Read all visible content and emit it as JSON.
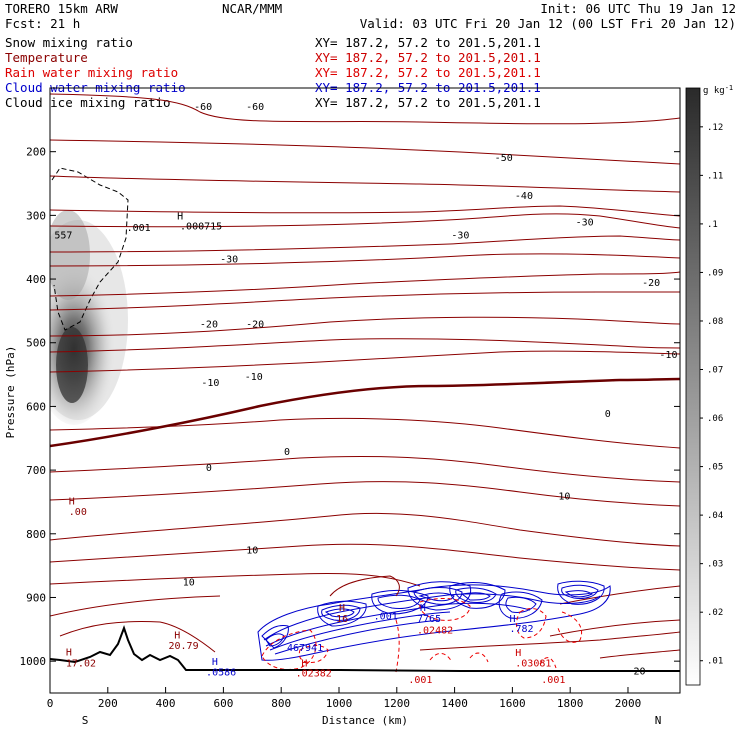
{
  "header": {
    "model": "TORERO  15km ARW",
    "center": "NCAR/MMM",
    "init": "Init: 06 UTC Thu 19 Jan 12",
    "fcst": "Fcst:   21 h",
    "valid": "Valid: 03 UTC Fri 20 Jan 12 (00 LST Fri 20 Jan 12)"
  },
  "legend": [
    {
      "name": "Snow mixing ratio",
      "xy": "XY= 187.2, 57.2 to 201.5,201.1",
      "color": "#000000"
    },
    {
      "name": "Temperature",
      "xy": "XY= 187.2, 57.2 to 201.5,201.1",
      "color": "#8b0000"
    },
    {
      "name": "Rain water mixing ratio",
      "xy": "XY= 187.2, 57.2 to 201.5,201.1",
      "color": "#ff0000"
    },
    {
      "name": "Cloud water mixing ratio",
      "xy": "XY= 187.2, 57.2 to 201.5,201.1",
      "color": "#0000cc"
    },
    {
      "name": "Cloud ice mixing ratio",
      "xy": "XY= 187.2, 57.2 to 201.5,201.1",
      "color": "#000000"
    }
  ],
  "chart_data": {
    "type": "contour-cross-section",
    "xlabel": "Distance (km)",
    "ylabel": "Pressure (hPa)",
    "xlim": [
      0,
      2180
    ],
    "ylim": [
      1050,
      100
    ],
    "x_ticks": [
      "0",
      "200",
      "400",
      "600",
      "800",
      "1000",
      "1200",
      "1400",
      "1600",
      "1800",
      "2000"
    ],
    "y_ticks": [
      "200",
      "300",
      "400",
      "500",
      "600",
      "700",
      "800",
      "900",
      "1000"
    ],
    "end_labels": {
      "left": "S",
      "right": "N"
    },
    "colorbar": {
      "unit": "g kg",
      "unit_exp": "-1",
      "ticks": [
        ".12",
        ".11",
        ".1",
        ".09",
        ".08",
        ".07",
        ".06",
        ".05",
        ".04",
        ".03",
        ".02",
        ".01"
      ]
    },
    "temperature_contour_labels": [
      {
        "text": "-60",
        "x": 530,
        "p": 128
      },
      {
        "text": "-60",
        "x": 710,
        "p": 128
      },
      {
        "text": "-50",
        "x": 1570,
        "p": 208
      },
      {
        "text": "-40",
        "x": 1640,
        "p": 268
      },
      {
        "text": "-30",
        "x": 620,
        "p": 368
      },
      {
        "text": "-30",
        "x": 1420,
        "p": 330
      },
      {
        "text": "-30",
        "x": 1850,
        "p": 310
      },
      {
        "text": "-20",
        "x": 550,
        "p": 470
      },
      {
        "text": "-20",
        "x": 710,
        "p": 470
      },
      {
        "text": "-20",
        "x": 2080,
        "p": 405
      },
      {
        "text": "-10",
        "x": 555,
        "p": 562
      },
      {
        "text": "-10",
        "x": 705,
        "p": 552
      },
      {
        "text": "-10",
        "x": 2140,
        "p": 518
      },
      {
        "text": "0",
        "x": 550,
        "p": 695
      },
      {
        "text": "0",
        "x": 820,
        "p": 670
      },
      {
        "text": "0",
        "x": 1930,
        "p": 610
      },
      {
        "text": "10",
        "x": 480,
        "p": 875
      },
      {
        "text": "10",
        "x": 700,
        "p": 825
      },
      {
        "text": "10",
        "x": 1780,
        "p": 740
      },
      {
        "text": "20",
        "x": 2040,
        "p": 1015
      }
    ],
    "other_labels": [
      {
        "text": "H",
        "x": 440,
        "p": 300,
        "color": "#000000"
      },
      {
        "text": ".000715",
        "x": 450,
        "p": 316,
        "color": "#000000"
      },
      {
        "text": ".001",
        "x": 265,
        "p": 318,
        "color": "#000000"
      },
      {
        "text": "557",
        "x": 15,
        "p": 330,
        "color": "#000000"
      },
      {
        "text": "H",
        "x": 65,
        "p": 748,
        "color": "#8b0000"
      },
      {
        "text": ".00",
        "x": 65,
        "p": 764,
        "color": "#8b0000"
      },
      {
        "text": "H",
        "x": 55,
        "p": 985,
        "color": "#8b0000"
      },
      {
        "text": "17.02",
        "x": 55,
        "p": 1002,
        "color": "#8b0000"
      },
      {
        "text": "H",
        "x": 430,
        "p": 958,
        "color": "#8b0000"
      },
      {
        "text": "20.79",
        "x": 410,
        "p": 975,
        "color": "#8b0000"
      },
      {
        "text": "H",
        "x": 560,
        "p": 1000,
        "color": "#0000cc"
      },
      {
        "text": ".0586",
        "x": 540,
        "p": 1016,
        "color": "#0000cc"
      },
      {
        "text": "H",
        "x": 870,
        "p": 1002,
        "color": "#cc0000"
      },
      {
        "text": ".02382",
        "x": 850,
        "p": 1018,
        "color": "#cc0000"
      },
      {
        "text": "467941",
        "x": 820,
        "p": 978,
        "color": "#0000cc"
      },
      {
        "text": "H",
        "x": 1000,
        "p": 915,
        "color": "#8b0000"
      },
      {
        "text": "16",
        "x": 990,
        "p": 932,
        "color": "#8b0000"
      },
      {
        "text": ".001",
        "x": 1120,
        "p": 928,
        "color": "#0000cc"
      },
      {
        "text": "H",
        "x": 1280,
        "p": 915,
        "color": "#0000cc"
      },
      {
        "text": "7765",
        "x": 1270,
        "p": 932,
        "color": "#0000cc"
      },
      {
        "text": ".02482",
        "x": 1270,
        "p": 950,
        "color": "#cc0000"
      },
      {
        "text": "H",
        "x": 1590,
        "p": 932,
        "color": "#0000cc"
      },
      {
        "text": ".782",
        "x": 1590,
        "p": 948,
        "color": "#0000cc"
      },
      {
        "text": "H",
        "x": 1610,
        "p": 986,
        "color": "#cc0000"
      },
      {
        "text": ".03081",
        "x": 1610,
        "p": 1002,
        "color": "#cc0000"
      },
      {
        "text": ".001",
        "x": 1240,
        "p": 1028,
        "color": "#cc0000"
      },
      {
        "text": ".001",
        "x": 1700,
        "p": 1028,
        "color": "#cc0000"
      }
    ]
  }
}
